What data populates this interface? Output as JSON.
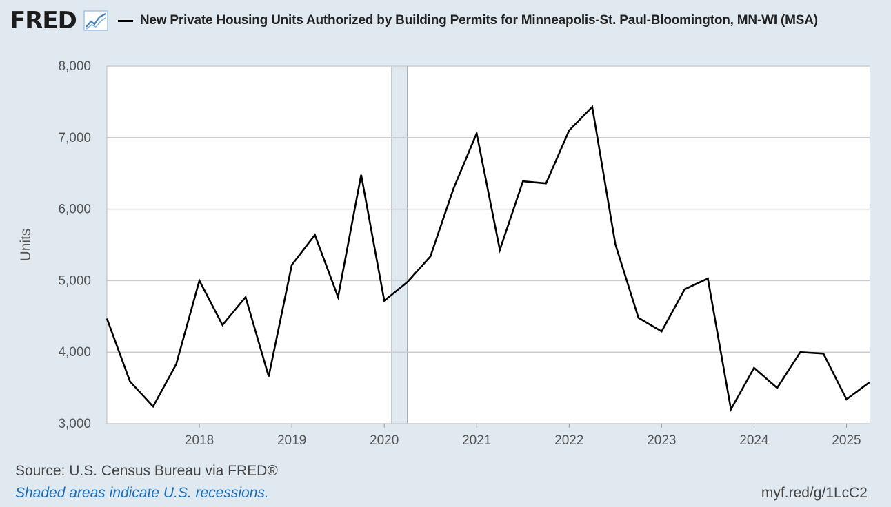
{
  "header": {
    "logo_text": "FRED",
    "title": "New Private Housing Units Authorized by Building Permits for Minneapolis-St. Paul-Bloomington, MN-WI (MSA)"
  },
  "colors": {
    "background": "#e1e9f0",
    "plot_background": "#ffffff",
    "line": "#000000",
    "recession": "#e1e9f0",
    "grid": "#cccccc",
    "note": "#1a6fb8"
  },
  "chart_data": {
    "type": "line",
    "title": "New Private Housing Units Authorized by Building Permits for Minneapolis-St. Paul-Bloomington, MN-WI (MSA)",
    "xlabel": "",
    "ylabel": "Units",
    "ylim": [
      3000,
      8000
    ],
    "xlim": [
      2017.0,
      2025.25
    ],
    "grid": true,
    "yticks": [
      3000,
      4000,
      5000,
      6000,
      7000,
      8000
    ],
    "ytick_labels": [
      "3,000",
      "4,000",
      "5,000",
      "6,000",
      "7,000",
      "8,000"
    ],
    "xticks": [
      2018,
      2019,
      2020,
      2021,
      2022,
      2023,
      2024,
      2025
    ],
    "xtick_labels": [
      "2018",
      "2019",
      "2020",
      "2021",
      "2022",
      "2023",
      "2024",
      "2025"
    ],
    "recessions": [
      [
        2020.08,
        2020.25
      ]
    ],
    "series": [
      {
        "name": "New Private Housing Units Authorized by Building Permits for Minneapolis-St. Paul-Bloomington, MN-WI (MSA)",
        "x": [
          2017.0,
          2017.25,
          2017.5,
          2017.75,
          2018.0,
          2018.25,
          2018.5,
          2018.75,
          2019.0,
          2019.25,
          2019.5,
          2019.75,
          2020.0,
          2020.25,
          2020.5,
          2020.75,
          2021.0,
          2021.25,
          2021.5,
          2021.75,
          2022.0,
          2022.25,
          2022.5,
          2022.75,
          2023.0,
          2023.25,
          2023.5,
          2023.75,
          2024.0,
          2024.25,
          2024.5,
          2024.75,
          2025.0,
          2025.25
        ],
        "values": [
          4470,
          3590,
          3240,
          3830,
          5000,
          4380,
          4770,
          3660,
          5220,
          5640,
          4770,
          6480,
          4720,
          4980,
          5340,
          6290,
          7060,
          5430,
          6390,
          6360,
          7100,
          7430,
          5510,
          4480,
          4290,
          4880,
          5030,
          3200,
          3780,
          3500,
          4000,
          3980,
          3340,
          3580
        ]
      }
    ]
  },
  "footer": {
    "source": "Source: U.S. Census Bureau via FRED®",
    "note": "Shaded areas indicate U.S. recessions.",
    "url": "myf.red/g/1LcC2"
  }
}
